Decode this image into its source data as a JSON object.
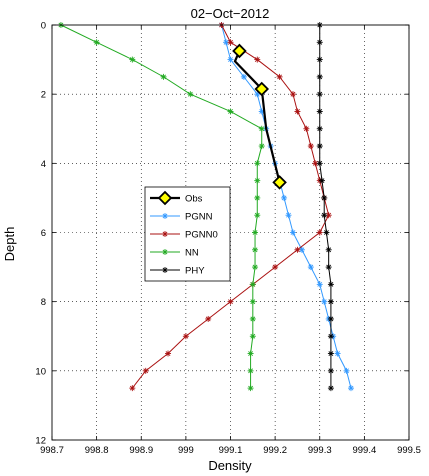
{
  "chart_data": {
    "type": "line",
    "title": "02−Oct−2012",
    "xlabel": "Density",
    "ylabel": "Depth",
    "xlim": [
      998.7,
      999.5
    ],
    "ylim": [
      0,
      12
    ],
    "y_reversed": true,
    "grid": "dotted",
    "legend_position": "left-center",
    "xticks": [
      998.7,
      998.8,
      998.9,
      999,
      999.1,
      999.2,
      999.3,
      999.4,
      999.5
    ],
    "xtick_labels": [
      "998.7",
      "998.8",
      "998.9",
      "999",
      "999.1",
      "999.2",
      "999.3",
      "999.4",
      "999.5"
    ],
    "yticks": [
      0,
      2,
      4,
      6,
      8,
      10,
      12
    ],
    "ytick_labels": [
      "0",
      "2",
      "4",
      "6",
      "8",
      "10",
      "12"
    ],
    "series": [
      {
        "name": "Obs",
        "color": "#000000",
        "marker": "diamond",
        "marker_fill": "#ffff00",
        "points": [
          [
            999.12,
            0.75
          ],
          [
            999.11,
            1.05
          ],
          [
            999.17,
            1.85
          ],
          [
            999.18,
            3.0
          ],
          [
            999.21,
            4.55
          ]
        ],
        "marker_indices": [
          0,
          2,
          4
        ]
      },
      {
        "name": "PGNN",
        "color": "#3399ff",
        "marker": "star",
        "points": [
          [
            999.08,
            0.0
          ],
          [
            999.09,
            0.5
          ],
          [
            999.1,
            1.0
          ],
          [
            999.13,
            1.5
          ],
          [
            999.16,
            2.0
          ],
          [
            999.17,
            2.5
          ],
          [
            999.18,
            3.0
          ],
          [
            999.19,
            3.5
          ],
          [
            999.2,
            4.0
          ],
          [
            999.21,
            4.5
          ],
          [
            999.22,
            5.0
          ],
          [
            999.23,
            5.5
          ],
          [
            999.24,
            6.0
          ],
          [
            999.26,
            6.5
          ],
          [
            999.28,
            7.0
          ],
          [
            999.3,
            7.5
          ],
          [
            999.31,
            8.0
          ],
          [
            999.32,
            8.5
          ],
          [
            999.33,
            9.0
          ],
          [
            999.34,
            9.5
          ],
          [
            999.36,
            10.0
          ],
          [
            999.37,
            10.5
          ]
        ]
      },
      {
        "name": "PGNN0",
        "color": "#aa1111",
        "marker": "star",
        "points": [
          [
            999.08,
            0.0
          ],
          [
            999.1,
            0.5
          ],
          [
            999.16,
            1.0
          ],
          [
            999.21,
            1.5
          ],
          [
            999.24,
            2.0
          ],
          [
            999.25,
            2.5
          ],
          [
            999.27,
            3.0
          ],
          [
            999.28,
            3.5
          ],
          [
            999.29,
            4.0
          ],
          [
            999.3,
            4.5
          ],
          [
            999.31,
            5.0
          ],
          [
            999.32,
            5.5
          ],
          [
            999.3,
            6.0
          ],
          [
            999.25,
            6.5
          ],
          [
            999.2,
            7.0
          ],
          [
            999.15,
            7.5
          ],
          [
            999.1,
            8.0
          ],
          [
            999.05,
            8.5
          ],
          [
            999.0,
            9.0
          ],
          [
            998.96,
            9.5
          ],
          [
            998.91,
            10.0
          ],
          [
            998.88,
            10.5
          ]
        ]
      },
      {
        "name": "NN",
        "color": "#22aa22",
        "marker": "star",
        "points": [
          [
            998.72,
            0.0
          ],
          [
            998.8,
            0.5
          ],
          [
            998.88,
            1.0
          ],
          [
            998.95,
            1.5
          ],
          [
            999.01,
            2.0
          ],
          [
            999.1,
            2.5
          ],
          [
            999.17,
            3.0
          ],
          [
            999.17,
            3.5
          ],
          [
            999.16,
            4.0
          ],
          [
            999.16,
            4.5
          ],
          [
            999.16,
            5.0
          ],
          [
            999.16,
            5.5
          ],
          [
            999.155,
            6.0
          ],
          [
            999.155,
            6.5
          ],
          [
            999.155,
            7.0
          ],
          [
            999.15,
            7.5
          ],
          [
            999.15,
            8.0
          ],
          [
            999.15,
            8.5
          ],
          [
            999.15,
            9.0
          ],
          [
            999.145,
            9.5
          ],
          [
            999.145,
            10.0
          ],
          [
            999.145,
            10.5
          ]
        ]
      },
      {
        "name": "PHY",
        "color": "#000000",
        "marker": "star",
        "points": [
          [
            999.3,
            0.0
          ],
          [
            999.3,
            0.5
          ],
          [
            999.3,
            1.0
          ],
          [
            999.3,
            1.5
          ],
          [
            999.3,
            2.0
          ],
          [
            999.3,
            2.5
          ],
          [
            999.3,
            3.0
          ],
          [
            999.3,
            3.5
          ],
          [
            999.3,
            4.0
          ],
          [
            999.305,
            4.5
          ],
          [
            999.31,
            5.0
          ],
          [
            999.31,
            5.5
          ],
          [
            999.315,
            6.0
          ],
          [
            999.32,
            6.5
          ],
          [
            999.32,
            7.0
          ],
          [
            999.325,
            7.5
          ],
          [
            999.325,
            8.0
          ],
          [
            999.325,
            8.5
          ],
          [
            999.325,
            9.0
          ],
          [
            999.325,
            9.5
          ],
          [
            999.325,
            10.0
          ],
          [
            999.325,
            10.5
          ]
        ]
      }
    ]
  }
}
